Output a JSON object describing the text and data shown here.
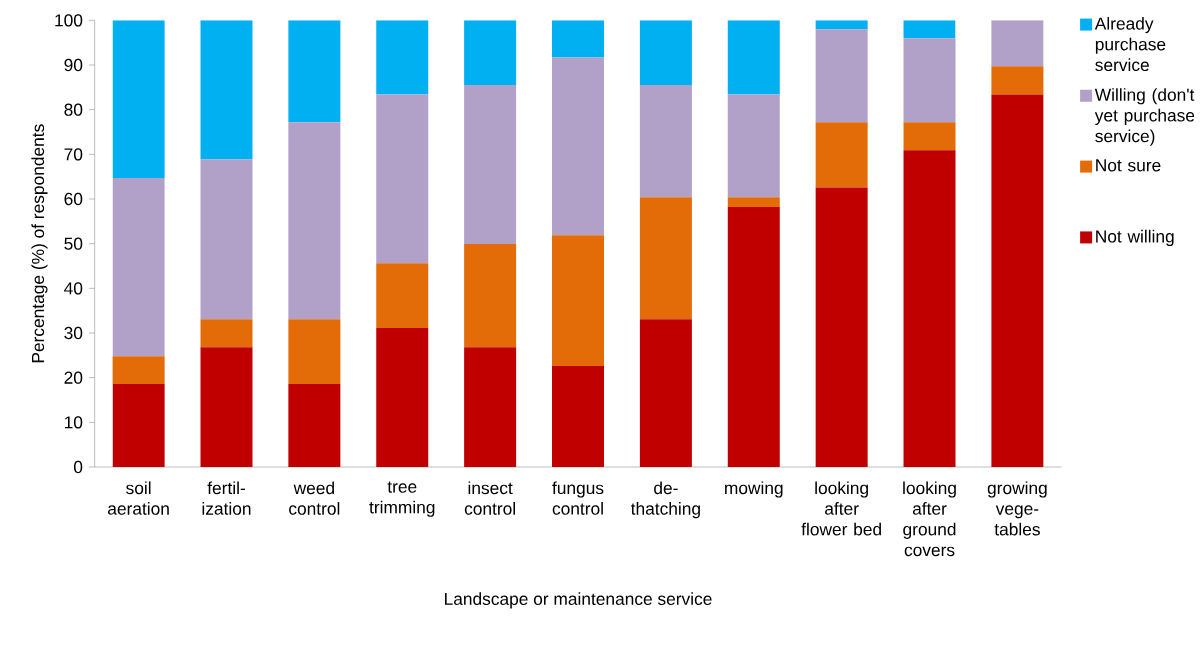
{
  "chart_data": {
    "type": "bar",
    "stacked": true,
    "xlabel": "Landscape or maintenance service",
    "ylabel": "Percentage (%) of respondents",
    "categories": [
      "soil aeration",
      "fertil-ization",
      "weed control",
      "tree trimming",
      "insect control",
      "fungus control",
      "de-thatching",
      "mowing",
      "looking after flower bed",
      "looking after ground covers",
      "growing vege-tables"
    ],
    "series": [
      {
        "name": "Not willing",
        "color": "#c00000",
        "values": [
          18.6,
          26.8,
          18.6,
          31.1,
          26.8,
          22.6,
          33.1,
          58.2,
          62.6,
          70.9,
          83.4
        ]
      },
      {
        "name": "Not sure",
        "color": "#e36c09",
        "values": [
          6.2,
          6.3,
          14.5,
          14.5,
          23.1,
          29.3,
          27.3,
          2.2,
          14.6,
          6.3,
          6.3
        ]
      },
      {
        "name": "Willing (don't yet purchase service)",
        "color": "#b1a0c7",
        "values": [
          39.9,
          35.8,
          44.1,
          37.8,
          35.6,
          39.8,
          25.1,
          23.0,
          20.8,
          18.8,
          10.3
        ]
      },
      {
        "name": "Already purchase service",
        "color": "#00b0f0",
        "values": [
          35.3,
          31.1,
          22.8,
          16.6,
          14.5,
          8.3,
          14.5,
          16.6,
          2.0,
          4.0,
          0
        ]
      }
    ],
    "ylim": [
      0,
      100
    ],
    "yticks": [
      0,
      10,
      20,
      30,
      40,
      50,
      60,
      70,
      80,
      90,
      100
    ],
    "legend": "right"
  }
}
